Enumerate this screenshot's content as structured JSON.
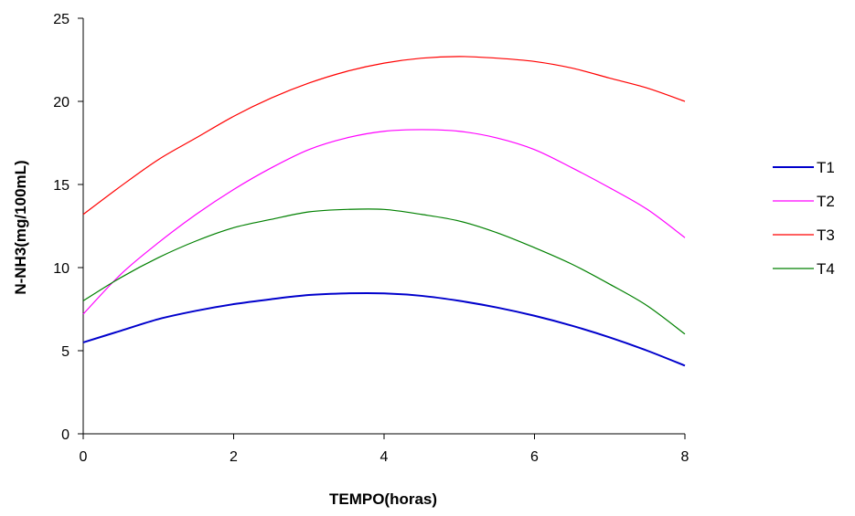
{
  "chart_data": {
    "type": "line",
    "title": "",
    "xlabel": "TEMPO(horas)",
    "ylabel": "N-NH3(mg/100mL)",
    "xlim": [
      0,
      8
    ],
    "ylim": [
      0,
      25
    ],
    "xticks": [
      0,
      2,
      4,
      6,
      8
    ],
    "yticks": [
      0,
      5,
      10,
      15,
      20,
      25
    ],
    "grid": false,
    "legend_position": "right",
    "x": [
      0,
      0.5,
      1,
      1.5,
      2,
      2.5,
      3,
      3.5,
      4,
      4.5,
      5,
      5.5,
      6,
      6.5,
      7,
      7.5,
      8
    ],
    "series": [
      {
        "name": "T1",
        "color": "#0000cc",
        "values": [
          5.5,
          6.2,
          6.9,
          7.4,
          7.8,
          8.1,
          8.35,
          8.45,
          8.45,
          8.3,
          8.0,
          7.6,
          7.1,
          6.5,
          5.8,
          5.0,
          4.1
        ]
      },
      {
        "name": "T2",
        "color": "#ff00ff",
        "values": [
          7.2,
          9.6,
          11.5,
          13.2,
          14.7,
          16.0,
          17.1,
          17.8,
          18.2,
          18.3,
          18.2,
          17.8,
          17.1,
          16.0,
          14.8,
          13.5,
          11.8
        ]
      },
      {
        "name": "T3",
        "color": "#ff0000",
        "values": [
          13.2,
          14.9,
          16.5,
          17.8,
          19.1,
          20.2,
          21.1,
          21.8,
          22.3,
          22.6,
          22.7,
          22.6,
          22.4,
          22.0,
          21.4,
          20.8,
          20.0
        ]
      },
      {
        "name": "T4",
        "color": "#008000",
        "values": [
          8.0,
          9.4,
          10.6,
          11.6,
          12.4,
          12.9,
          13.35,
          13.5,
          13.5,
          13.2,
          12.8,
          12.1,
          11.2,
          10.2,
          9.0,
          7.7,
          6.0
        ]
      }
    ]
  }
}
